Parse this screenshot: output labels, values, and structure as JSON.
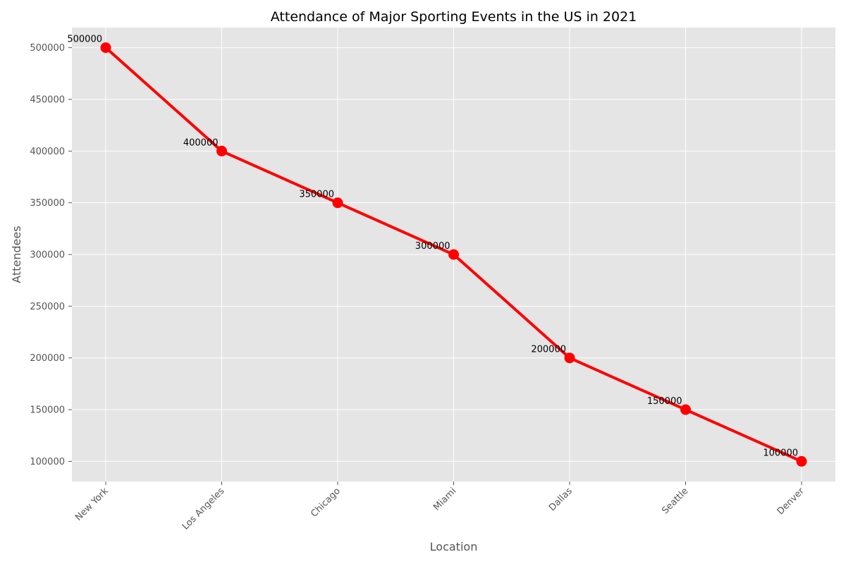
{
  "chart_data": {
    "type": "line",
    "title": "Attendance of Major Sporting Events in the US in 2021",
    "xlabel": "Location",
    "ylabel": "Attendees",
    "categories": [
      "New York",
      "Los Angeles",
      "Chicago",
      "Miami",
      "Dallas",
      "Seattle",
      "Denver"
    ],
    "series": [
      {
        "values": [
          500000,
          400000,
          350000,
          300000,
          200000,
          150000,
          100000
        ]
      }
    ],
    "ylim": [
      80500,
      519500
    ],
    "yticks": [
      100000,
      150000,
      200000,
      250000,
      300000,
      350000,
      400000,
      450000,
      500000
    ],
    "grid": true,
    "data_labels": true,
    "x_tick_rotation": 45,
    "colors": {
      "line": "#ff0000",
      "marker": "#ff0000",
      "plot_background": "#e5e5e5",
      "grid": "#ffffff"
    }
  }
}
